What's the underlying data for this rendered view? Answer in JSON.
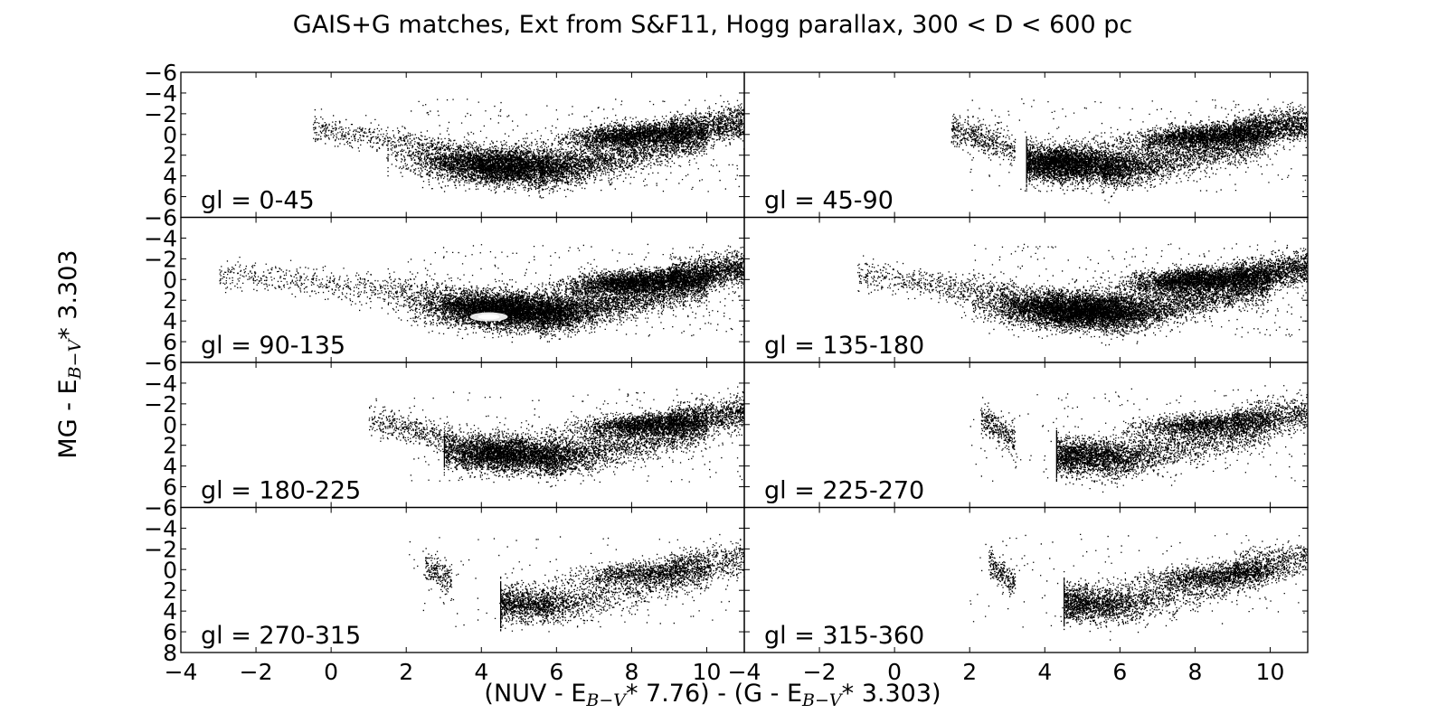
{
  "chart_data": {
    "type": "scatter",
    "title": "GAIS+G matches, Ext from S&F11, Hogg parallax, 300 < D < 600 pc",
    "xlabel_parts": [
      "(NUV - E",
      "B−V",
      "* 7.76) - (G - E",
      "B−V",
      "* 3.303)"
    ],
    "ylabel_parts": [
      "MG - E",
      "B−V",
      "* 3.303"
    ],
    "xlim": [
      -4,
      11
    ],
    "ylim": [
      8,
      -6
    ],
    "y_inverted": true,
    "x_ticks": [
      "−4",
      "−2",
      "0",
      "2",
      "4",
      "6",
      "8",
      "10"
    ],
    "x_tick_values": [
      -4,
      -2,
      0,
      2,
      4,
      6,
      8,
      10
    ],
    "y_ticks": [
      "−6",
      "−4",
      "−2",
      "0",
      "2",
      "4",
      "6",
      "8"
    ],
    "y_tick_values": [
      -6,
      -4,
      -2,
      0,
      2,
      4,
      6,
      8
    ],
    "grid": false,
    "layout": "4 rows x 2 columns, shared axes",
    "marker_color": "#000000",
    "panels": [
      {
        "label": "gl = 0-45",
        "density": 1.0,
        "x_min": -0.5,
        "red_clump": [
          8.1,
          0.0
        ],
        "main_seq_center": [
          4.5,
          3.0
        ]
      },
      {
        "label": "gl = 45-90",
        "density": 1.0,
        "x_min": 1.5,
        "red_clump": [
          8.2,
          0.1
        ],
        "main_seq_center": [
          4.5,
          2.8
        ]
      },
      {
        "label": "gl = 90-135",
        "density": 1.25,
        "x_min": -3.0,
        "red_clump": [
          8.1,
          0.2
        ],
        "main_seq_center": [
          4.6,
          2.9
        ],
        "highlight": [
          4.2,
          3.6
        ]
      },
      {
        "label": "gl = 135-180",
        "density": 1.2,
        "x_min": -1.0,
        "red_clump": [
          8.0,
          0.0
        ],
        "main_seq_center": [
          4.7,
          2.9
        ]
      },
      {
        "label": "gl = 180-225",
        "density": 0.85,
        "x_min": 1.0,
        "red_clump": [
          8.3,
          0.0
        ],
        "main_seq_center": [
          4.6,
          2.8
        ]
      },
      {
        "label": "gl = 225-270",
        "density": 0.65,
        "x_min": 2.3,
        "red_clump": [
          8.2,
          0.0
        ],
        "main_seq_center": [
          4.6,
          3.0
        ]
      },
      {
        "label": "gl = 270-315",
        "density": 0.45,
        "x_min": 2.5,
        "red_clump": [
          8.3,
          0.3
        ],
        "main_seq_center": [
          4.6,
          3.2
        ]
      },
      {
        "label": "gl = 315-360",
        "density": 0.5,
        "x_min": 2.5,
        "red_clump": [
          8.5,
          0.5
        ],
        "main_seq_center": [
          4.6,
          3.2
        ]
      }
    ]
  }
}
